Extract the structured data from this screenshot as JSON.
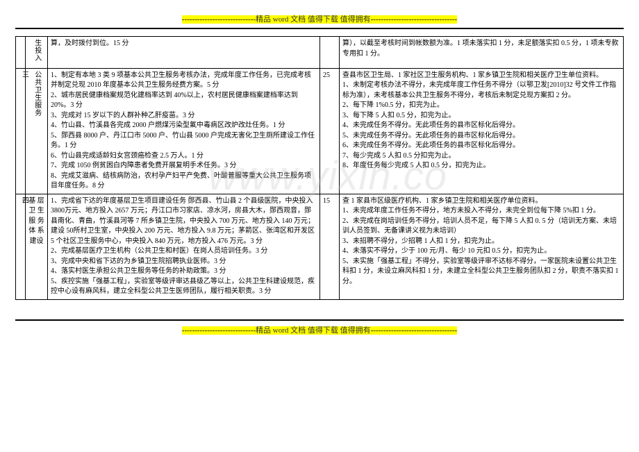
{
  "header": {
    "dashes_left": "-----------------------------",
    "text": "精品 word 文档  值得下载  值得拥有",
    "dashes_right": "----------------------------------"
  },
  "footer": {
    "dashes_left": "-----------------------------",
    "text": "精品 word 文档  值得下载  值得拥有",
    "dashes_right": "----------------------------------"
  },
  "watermark": "www.yixin.co",
  "rows": {
    "r1": {
      "idx": "",
      "label": "生投入",
      "left": "算，及时拨付到位。15 分",
      "score": "",
      "right": "算），以截至考核时间到帐数额为准。1 项未落实扣 1 分，未足额落实扣 0.5 分，1 项未专款专用扣 1 分。"
    },
    "r2": {
      "idx": "三",
      "label": "公共卫生服务",
      "left": "1、制定有本地 3 类 9 项基本公共卫生服务考核办法，完成年度工作任务，已完成考核并制定兑现 2010 年度基本公共卫生服务经费方案。5 分\n2、城市居民健康档案规范化建档率达到 40%以上，农村居民健康档案建档率达到 20%。3 分\n3、完成对 15 岁以下的人群补种乙肝疫苗。3 分\n4、竹山县、竹溪县各完成 2000 户燃煤污染型氟中毒病区改炉改灶任务。1 分\n5、郧西县 8000 户、丹江口市 5000 户、竹山县 5000 户完成无害化卫生厕所建设工作任务。1 分\n6、竹山县完成适龄妇女宫颈癌检查 2.5 万人。1 分\n7、完成 1050 例贫困白内障患者免费开展复明手术任务。3 分\n8、完成艾滋病、结核病防治，农村孕产妇平产免费、叶酸普服等重大公共卫生服务项目年度任务。8 分",
      "score": "25",
      "right": "查县市区卫生局、1 家社区卫生服务机构、1 家乡镇卫生院和相关医疗卫生单位资料。\n1、未制定考核办法不得分，未完成年度工作任务不得分（以鄂卫发[2010]32 号文件工作指标为准），未考核基本公共卫生服务不得分，考核后未制定兑现方案扣 2 分。\n2、每下降 1%0.5 分，扣完为止。\n3、每下降 5 人扣 0.5 分，扣完为止。\n4、未完成任务不得分。无此项任务的县市区标化后得分。\n5、未完成任务不得分。无此项任务的县市区标化后得分。\n6、未完成任务不得分。无此项任务的县市区标化后得分。\n7、每少完成 5 人扣 0.5 分扣完为止。\n8、年度任务每少完成 5 人扣 0.5 分，扣完为止。"
    },
    "r3": {
      "idx": "四",
      "label": "基 层卫 生服 务体 系建设",
      "left": "1、完成省下达的年度基层卫生项目建设任务 郧西县、竹山县 2 个县级医院，中央投入 3800万元、地方投入 2657 万元；丹江口市习家店、凉水河，房县大木，郧西观音，郧县南化、青曲，竹溪县河等 7 所乡镇卫生院，中央投入 700 万元、地方投入 140 万元；建设 50所村卫生室，中央投入 200 万元、地方投入 9.8 万元；茅箭区、张湾区和开发区 5 个社区卫生服务中心，中央投入 840 万元，地方投入 476 万元。3 分\n2、完成基层医疗卫生机构（公共卫生和村医）在岗人员培训任务。3 分\n3、完成中央和省下达的为乡镇卫生院招聘执业医师。3 分\n4、落实村医生承担公共卫生服务等任务的补助政策。3 分\n5、疾控实施「强基工程」，实验室等级评审达县级乙等以上，公共卫生科建设规范，疾控中心设有麻风科，建立全科型公共卫生医师团队，履行相关职责。3 分",
      "score": "15",
      "right": "查 1 家县市区级医疗机构、1 家乡镇卫生院和相关医疗单位资料。\n1、未完成年度工作任务不得分，地方未投入不得分，未完全到位每下降 5%扣 1 分。\n2、未完成在岗培训任务不得分，培训人员不足，每下降 5 人扣 0. 5 分（培训无方案、未培训人员签到、无备课讲义视为未培训）\n3、未招聘不得分，少招聘 1 人扣 1 分，扣完为止。\n4、未落实不得分，少于 100 元/月、每少 10 元扣 0.5 分，扣完为止。\n5、未实施「强基工程」不得分，实验室等级评审不达标不得分，一家医院未设置公共卫生科扣 1 分，未设立麻风科扣 1 分，未建立全科型公共卫生服务团队扣 2 分，职责不落实扣 1 分。"
    }
  }
}
